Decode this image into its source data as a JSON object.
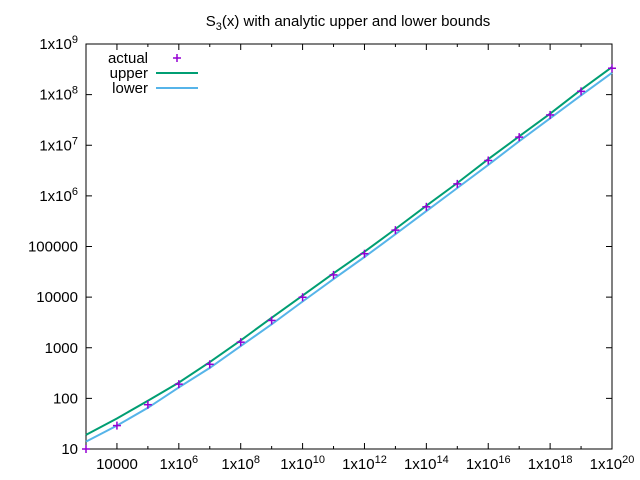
{
  "chart_data": {
    "type": "line",
    "title": {
      "main": "S",
      "sub": "3",
      "rest": "(x) with analytic upper and lower bounds"
    },
    "xscale": "log",
    "yscale": "log",
    "xlim": [
      1000,
      1e+20
    ],
    "ylim": [
      10,
      1000000000.0
    ],
    "grid": false,
    "legend_position": "top-left",
    "x_ticks": [
      {
        "value": 10000,
        "mant": "10000",
        "exp": ""
      },
      {
        "value": 1000000.0,
        "mant": "1x10",
        "exp": "6"
      },
      {
        "value": 100000000.0,
        "mant": "1x10",
        "exp": "8"
      },
      {
        "value": 10000000000.0,
        "mant": "1x10",
        "exp": "10"
      },
      {
        "value": 1000000000000.0,
        "mant": "1x10",
        "exp": "12"
      },
      {
        "value": 100000000000000.0,
        "mant": "1x10",
        "exp": "14"
      },
      {
        "value": 1e+16,
        "mant": "1x10",
        "exp": "16"
      },
      {
        "value": 1e+18,
        "mant": "1x10",
        "exp": "18"
      },
      {
        "value": 1e+20,
        "mant": "1x10",
        "exp": "20"
      }
    ],
    "y_ticks": [
      {
        "value": 10,
        "mant": "10",
        "exp": ""
      },
      {
        "value": 100,
        "mant": "100",
        "exp": ""
      },
      {
        "value": 1000,
        "mant": "1000",
        "exp": ""
      },
      {
        "value": 10000,
        "mant": "10000",
        "exp": ""
      },
      {
        "value": 100000,
        "mant": "100000",
        "exp": ""
      },
      {
        "value": 1000000.0,
        "mant": "1x10",
        "exp": "6"
      },
      {
        "value": 10000000.0,
        "mant": "1x10",
        "exp": "7"
      },
      {
        "value": 100000000.0,
        "mant": "1x10",
        "exp": "8"
      },
      {
        "value": 1000000000.0,
        "mant": "1x10",
        "exp": "9"
      }
    ],
    "series": [
      {
        "name": "actual",
        "style": "points",
        "marker": "+",
        "color": "#9400d3",
        "x": [
          1000,
          10000,
          100000,
          1000000.0,
          10000000.0,
          100000000.0,
          1000000000.0,
          10000000000.0,
          100000000000.0,
          1000000000000.0,
          10000000000000.0,
          100000000000000.0,
          1000000000000000.0,
          1e+16,
          1e+17,
          1e+18,
          1e+19,
          1e+20
        ],
        "y": [
          10,
          29,
          75,
          191,
          471,
          1289,
          3462,
          9940,
          27466,
          72007,
          210528,
          608106,
          1725482,
          4999173,
          14470062,
          39719000,
          116000000,
          332000000
        ]
      },
      {
        "name": "upper",
        "style": "line",
        "color": "#009e73",
        "x": [
          1000,
          10000,
          100000,
          1000000.0,
          10000000.0,
          100000000.0,
          1000000000.0,
          10000000000.0,
          100000000000.0,
          1000000000000.0,
          10000000000000.0,
          100000000000000.0,
          1000000000000000.0,
          1e+16,
          1e+17,
          1e+18,
          1e+19,
          1e+20
        ],
        "y": [
          19,
          40,
          90,
          205,
          520,
          1400,
          3900,
          10700,
          29500,
          79000,
          222000,
          640000,
          1800000,
          5300000,
          15000000,
          42000000,
          125000000,
          350000000
        ]
      },
      {
        "name": "lower",
        "style": "line",
        "color": "#56b4e9",
        "x": [
          1000,
          10000,
          100000,
          1000000.0,
          10000000.0,
          100000000.0,
          1000000000.0,
          10000000000.0,
          100000000000.0,
          1000000000000.0,
          10000000000000.0,
          100000000000000.0,
          1000000000000000.0,
          1e+16,
          1e+17,
          1e+18,
          1e+19,
          1e+20
        ],
        "y": [
          14,
          29,
          65,
          165,
          400,
          1080,
          2900,
          8200,
          22700,
          62000,
          175000,
          500000,
          1430000,
          4100000,
          12000000,
          34000000,
          97000000,
          270000000
        ]
      }
    ]
  }
}
